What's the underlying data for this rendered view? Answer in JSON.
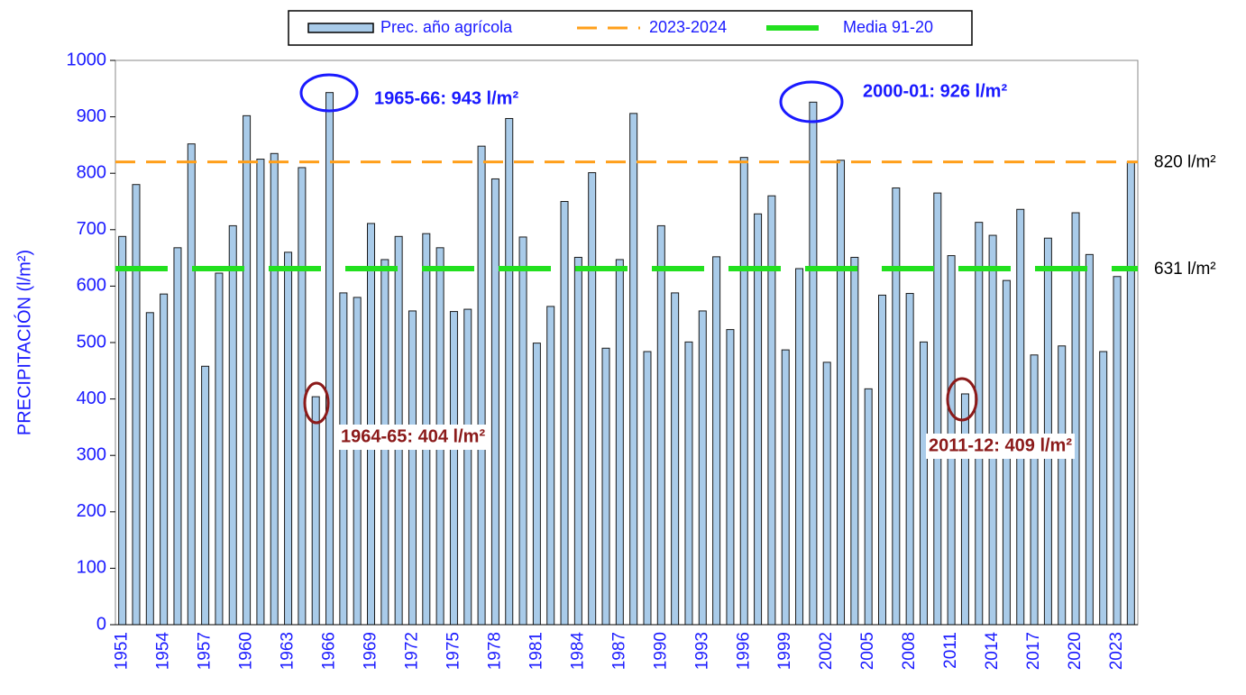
{
  "chart_data": {
    "type": "bar",
    "ylabel": "PRECIPITACIÓN (l/m²)",
    "categories": [
      "1951",
      null,
      null,
      "1954",
      null,
      null,
      "1957",
      null,
      null,
      "1960",
      null,
      null,
      "1963",
      null,
      null,
      "1966",
      null,
      null,
      "1969",
      null,
      null,
      "1972",
      null,
      null,
      "1975",
      null,
      null,
      "1978",
      null,
      null,
      "1981",
      null,
      null,
      "1984",
      null,
      null,
      "1987",
      null,
      null,
      "1990",
      null,
      null,
      "1993",
      null,
      null,
      "1996",
      null,
      null,
      "1999",
      null,
      null,
      "2002",
      null,
      null,
      "2005",
      null,
      null,
      "2008",
      null,
      null,
      "2011",
      null,
      null,
      "2014",
      null,
      null,
      "2017",
      null,
      null,
      "2020",
      null,
      null,
      "2023",
      null
    ],
    "series": [
      {
        "name": "Prec. año agrícola",
        "color": "#a9cbe9",
        "values": [
          688,
          780,
          553,
          586,
          668,
          852,
          458,
          623,
          707,
          902,
          825,
          835,
          660,
          810,
          404,
          943,
          588,
          580,
          711,
          647,
          688,
          556,
          693,
          668,
          555,
          559,
          848,
          790,
          897,
          687,
          499,
          564,
          750,
          651,
          801,
          490,
          647,
          906,
          484,
          707,
          588,
          501,
          556,
          652,
          523,
          828,
          728,
          760,
          487,
          631,
          926,
          465,
          823,
          651,
          418,
          584,
          774,
          587,
          501,
          765,
          654,
          409,
          713,
          690,
          610,
          736,
          478,
          685,
          494,
          730,
          656,
          484,
          617,
          820
        ]
      }
    ],
    "reference_lines": [
      {
        "name": "2023-2024",
        "value": 820,
        "label": "820 l/m²",
        "color": "#ff9f1a"
      },
      {
        "name": "Media 91-20",
        "value": 631,
        "label": "631 l/m²",
        "color": "#22e01f"
      }
    ],
    "annotations": [
      {
        "text": "1965-66: 943 l/m²",
        "color": "#1a1aff"
      },
      {
        "text": "2000-01: 926 l/m²",
        "color": "#1a1aff"
      },
      {
        "text": "1964-65: 404 l/m²",
        "color": "#8b1a1a"
      },
      {
        "text": "2011-12: 409 l/m²",
        "color": "#8b1a1a"
      }
    ],
    "ylim": [
      0,
      1000
    ],
    "yticks": [
      0,
      100,
      200,
      300,
      400,
      500,
      600,
      700,
      800,
      900,
      1000
    ]
  }
}
